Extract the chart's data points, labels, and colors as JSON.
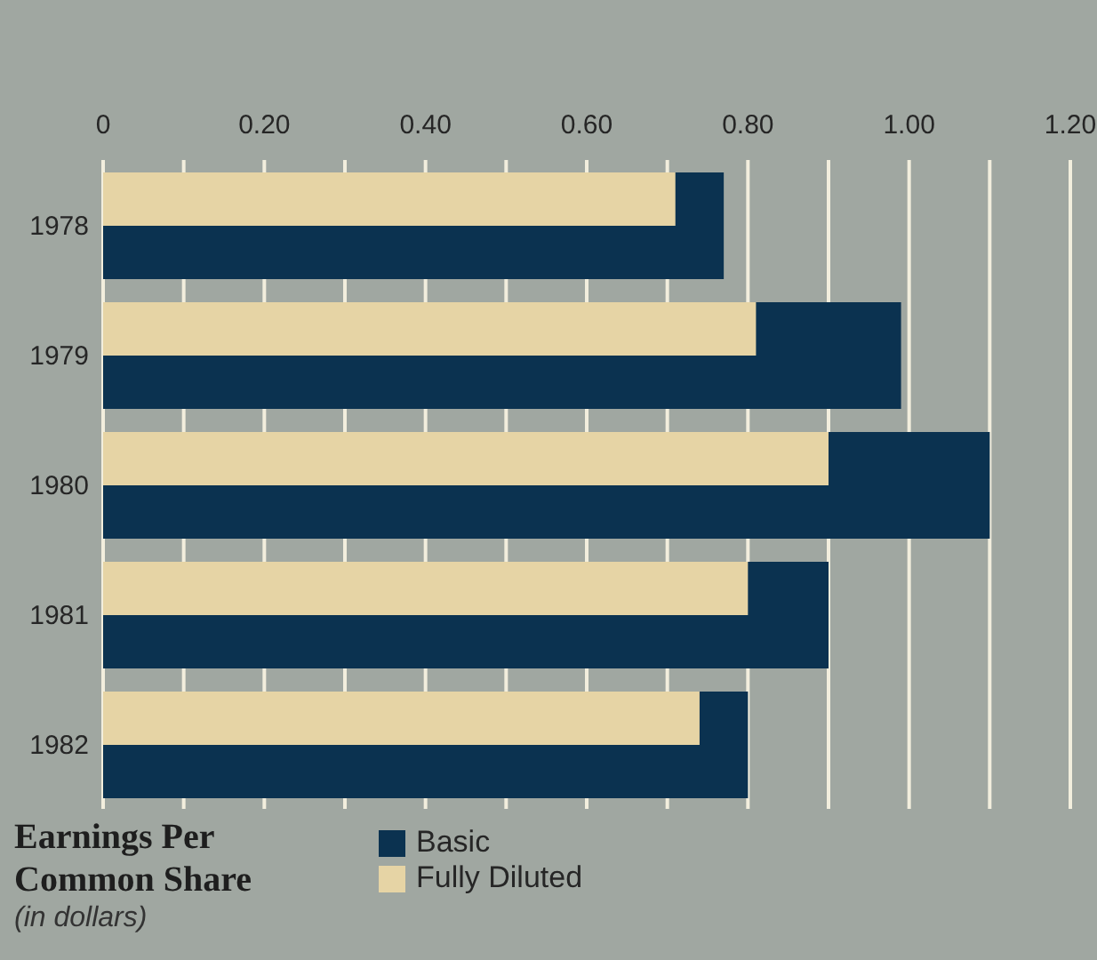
{
  "chart_data": {
    "type": "bar",
    "orientation": "horizontal",
    "title": "Earnings Per Common Share",
    "subtitle": "(in dollars)",
    "categories": [
      "1978",
      "1979",
      "1980",
      "1981",
      "1982"
    ],
    "series": [
      {
        "name": "Basic",
        "color": "#0b3250",
        "values": [
          0.77,
          0.99,
          1.1,
          0.9,
          0.8
        ]
      },
      {
        "name": "Fully Diluted",
        "color": "#e6d4a5",
        "values": [
          0.71,
          0.81,
          0.9,
          0.8,
          0.74
        ]
      }
    ],
    "xlim": [
      0,
      1.2
    ],
    "xticks": [
      0,
      {
        "value": 0.1,
        "label": null
      },
      {
        "value": 0.2,
        "label": "0.20"
      },
      {
        "value": 0.3,
        "label": null
      },
      {
        "value": 0.4,
        "label": "0.40"
      },
      {
        "value": 0.5,
        "label": null
      },
      {
        "value": 0.6,
        "label": "0.60"
      },
      {
        "value": 0.7,
        "label": null
      },
      {
        "value": 0.8,
        "label": "0.80"
      },
      {
        "value": 0.9,
        "label": null
      },
      {
        "value": 1.0,
        "label": "1.00"
      },
      {
        "value": 1.1,
        "label": null
      },
      {
        "value": 1.2,
        "label": "1.20"
      }
    ],
    "grid": "x",
    "legend": "bottom"
  }
}
